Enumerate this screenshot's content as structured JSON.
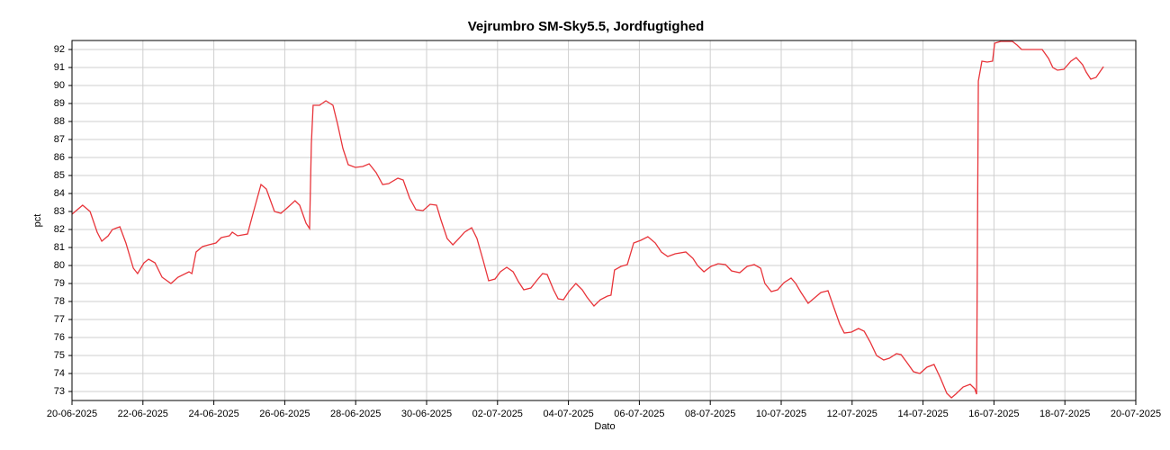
{
  "chart_data": {
    "type": "line",
    "title": "Vejrumbro SM-Sky5.5, Jordfugtighed",
    "xlabel": "Dato",
    "ylabel": "pct",
    "xlim": [
      0,
      30
    ],
    "ylim": [
      72.5,
      92.5
    ],
    "xticks": [
      {
        "value": 0,
        "label": "20-06-2025"
      },
      {
        "value": 2,
        "label": "22-06-2025"
      },
      {
        "value": 4,
        "label": "24-06-2025"
      },
      {
        "value": 6,
        "label": "26-06-2025"
      },
      {
        "value": 8,
        "label": "28-06-2025"
      },
      {
        "value": 10,
        "label": "30-06-2025"
      },
      {
        "value": 12,
        "label": "02-07-2025"
      },
      {
        "value": 14,
        "label": "04-07-2025"
      },
      {
        "value": 16,
        "label": "06-07-2025"
      },
      {
        "value": 18,
        "label": "08-07-2025"
      },
      {
        "value": 20,
        "label": "10-07-2025"
      },
      {
        "value": 22,
        "label": "12-07-2025"
      },
      {
        "value": 24,
        "label": "14-07-2025"
      },
      {
        "value": 26,
        "label": "16-07-2025"
      },
      {
        "value": 28,
        "label": "18-07-2025"
      },
      {
        "value": 30,
        "label": "20-07-2025"
      }
    ],
    "yticks": [
      73,
      74,
      75,
      76,
      77,
      78,
      79,
      80,
      81,
      82,
      83,
      84,
      85,
      86,
      87,
      88,
      89,
      90,
      91,
      92
    ],
    "grid": true,
    "x": [
      0.0,
      0.3,
      0.51,
      0.71,
      0.84,
      1.02,
      1.14,
      1.35,
      1.52,
      1.73,
      1.85,
      2.03,
      2.16,
      2.34,
      2.54,
      2.79,
      2.99,
      3.3,
      3.38,
      3.5,
      3.68,
      3.86,
      4.06,
      4.21,
      4.44,
      4.52,
      4.67,
      4.95,
      5.1,
      5.33,
      5.48,
      5.71,
      5.89,
      6.04,
      6.29,
      6.42,
      6.6,
      6.7,
      6.75,
      6.8,
      6.98,
      7.16,
      7.36,
      7.49,
      7.64,
      7.79,
      7.99,
      8.2,
      8.38,
      8.58,
      8.76,
      8.93,
      9.19,
      9.34,
      9.52,
      9.7,
      9.9,
      10.1,
      10.28,
      10.41,
      10.58,
      10.74,
      10.91,
      11.07,
      11.27,
      11.42,
      11.6,
      11.75,
      11.93,
      12.08,
      12.26,
      12.44,
      12.59,
      12.74,
      12.94,
      13.1,
      13.27,
      13.4,
      13.58,
      13.71,
      13.86,
      14.01,
      14.21,
      14.39,
      14.52,
      14.72,
      14.9,
      15.1,
      15.2,
      15.3,
      15.48,
      15.66,
      15.84,
      16.04,
      16.24,
      16.45,
      16.62,
      16.8,
      17.01,
      17.31,
      17.51,
      17.64,
      17.82,
      18.02,
      18.22,
      18.43,
      18.6,
      18.83,
      19.04,
      19.24,
      19.42,
      19.54,
      19.72,
      19.9,
      20.08,
      20.28,
      20.41,
      20.56,
      20.76,
      20.91,
      21.12,
      21.32,
      21.47,
      21.65,
      21.78,
      21.98,
      22.18,
      22.34,
      22.51,
      22.69,
      22.89,
      23.05,
      23.25,
      23.38,
      23.55,
      23.73,
      23.91,
      24.11,
      24.31,
      24.49,
      24.67,
      24.8,
      24.92,
      25.13,
      25.33,
      25.46,
      25.51,
      25.56,
      25.66,
      25.81,
      25.96,
      26.02,
      26.19,
      26.52,
      26.65,
      26.78,
      27.03,
      27.36,
      27.54,
      27.66,
      27.79,
      27.97,
      28.17,
      28.32,
      28.5,
      28.6,
      28.73,
      28.88,
      29.09
    ],
    "series": [
      {
        "name": "pct",
        "color": "#e8343a",
        "values": [
          82.85,
          83.35,
          83.0,
          81.85,
          81.35,
          81.65,
          82.0,
          82.15,
          81.25,
          79.85,
          79.55,
          80.15,
          80.35,
          80.15,
          79.35,
          79.0,
          79.35,
          79.65,
          79.55,
          80.75,
          81.05,
          81.15,
          81.25,
          81.55,
          81.65,
          81.85,
          81.65,
          81.75,
          82.85,
          84.5,
          84.25,
          83.0,
          82.9,
          83.15,
          83.6,
          83.35,
          82.35,
          82.05,
          86.75,
          88.9,
          88.9,
          89.15,
          88.9,
          87.85,
          86.5,
          85.6,
          85.45,
          85.5,
          85.65,
          85.15,
          84.5,
          84.55,
          84.85,
          84.75,
          83.75,
          83.1,
          83.05,
          83.4,
          83.35,
          82.5,
          81.5,
          81.15,
          81.5,
          81.85,
          82.1,
          81.5,
          80.25,
          79.15,
          79.25,
          79.65,
          79.9,
          79.65,
          79.1,
          78.65,
          78.75,
          79.15,
          79.55,
          79.5,
          78.65,
          78.15,
          78.1,
          78.55,
          79.0,
          78.65,
          78.25,
          77.75,
          78.1,
          78.3,
          78.35,
          79.75,
          79.95,
          80.05,
          81.25,
          81.4,
          81.6,
          81.25,
          80.75,
          80.5,
          80.65,
          80.75,
          80.4,
          80.0,
          79.65,
          79.95,
          80.1,
          80.05,
          79.7,
          79.6,
          79.95,
          80.05,
          79.85,
          79.0,
          78.55,
          78.65,
          79.05,
          79.3,
          79.0,
          78.5,
          77.9,
          78.15,
          78.5,
          78.6,
          77.75,
          76.75,
          76.25,
          76.3,
          76.5,
          76.35,
          75.75,
          75.0,
          74.75,
          74.85,
          75.1,
          75.05,
          74.6,
          74.1,
          74.0,
          74.35,
          74.5,
          73.75,
          72.9,
          72.65,
          72.85,
          73.25,
          73.4,
          73.15,
          72.85,
          90.25,
          91.35,
          91.3,
          91.35,
          92.35,
          92.45,
          92.45,
          92.25,
          92.0,
          92.0,
          92.0,
          91.5,
          91.0,
          90.85,
          90.9,
          91.35,
          91.55,
          91.15,
          90.75,
          90.35,
          90.45,
          91.05
        ]
      }
    ]
  }
}
